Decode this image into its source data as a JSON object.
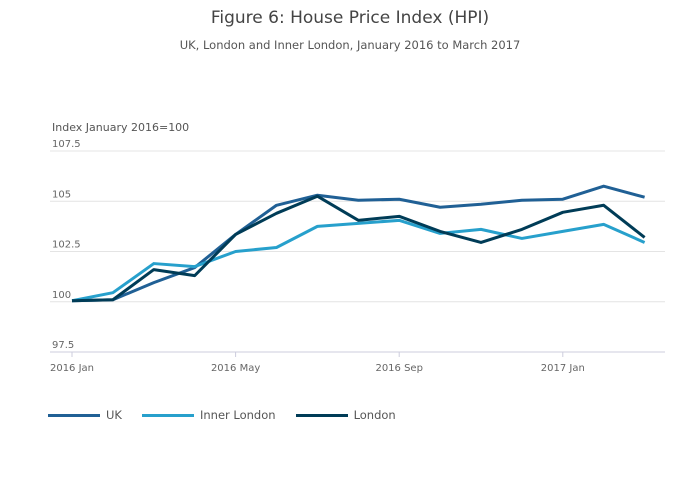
{
  "chart_data": {
    "type": "line",
    "title": "Figure 6: House Price Index (HPI)",
    "subtitle": "UK, London and Inner London, January 2016 to March 2017",
    "ylabel": "Index January 2016=100",
    "ylim": [
      97.5,
      107.5
    ],
    "yticks": [
      "97.5",
      "100",
      "102.5",
      "105",
      "107.5"
    ],
    "yticks_values": [
      97.5,
      100,
      102.5,
      105,
      107.5
    ],
    "x": [
      "2016 Jan",
      "2016 Feb",
      "2016 Mar",
      "2016 Apr",
      "2016 May",
      "2016 Jun",
      "2016 Jul",
      "2016 Aug",
      "2016 Sep",
      "2016 Oct",
      "2016 Nov",
      "2016 Dec",
      "2017 Jan",
      "2017 Feb",
      "2017 Mar"
    ],
    "xticks": [
      "2016 Jan",
      "2016 May",
      "2016 Sep",
      "2017 Jan"
    ],
    "grid": true,
    "legend_placement": "bottom-left",
    "series": [
      {
        "name": "UK",
        "color": "#206095",
        "values": [
          100.05,
          100.1,
          100.95,
          101.7,
          103.35,
          104.8,
          105.3,
          105.05,
          105.1,
          104.7,
          104.85,
          105.05,
          105.1,
          105.75,
          105.2
        ]
      },
      {
        "name": "Inner London",
        "color": "#27a0cc",
        "values": [
          100.05,
          100.45,
          101.9,
          101.75,
          102.5,
          102.7,
          103.75,
          103.9,
          104.05,
          103.4,
          103.6,
          103.15,
          103.5,
          103.85,
          102.95
        ]
      },
      {
        "name": "London",
        "color": "#003c57",
        "values": [
          100.05,
          100.1,
          101.6,
          101.3,
          103.35,
          104.4,
          105.25,
          104.05,
          104.25,
          103.5,
          102.95,
          103.6,
          104.45,
          104.8,
          103.2
        ]
      }
    ]
  }
}
